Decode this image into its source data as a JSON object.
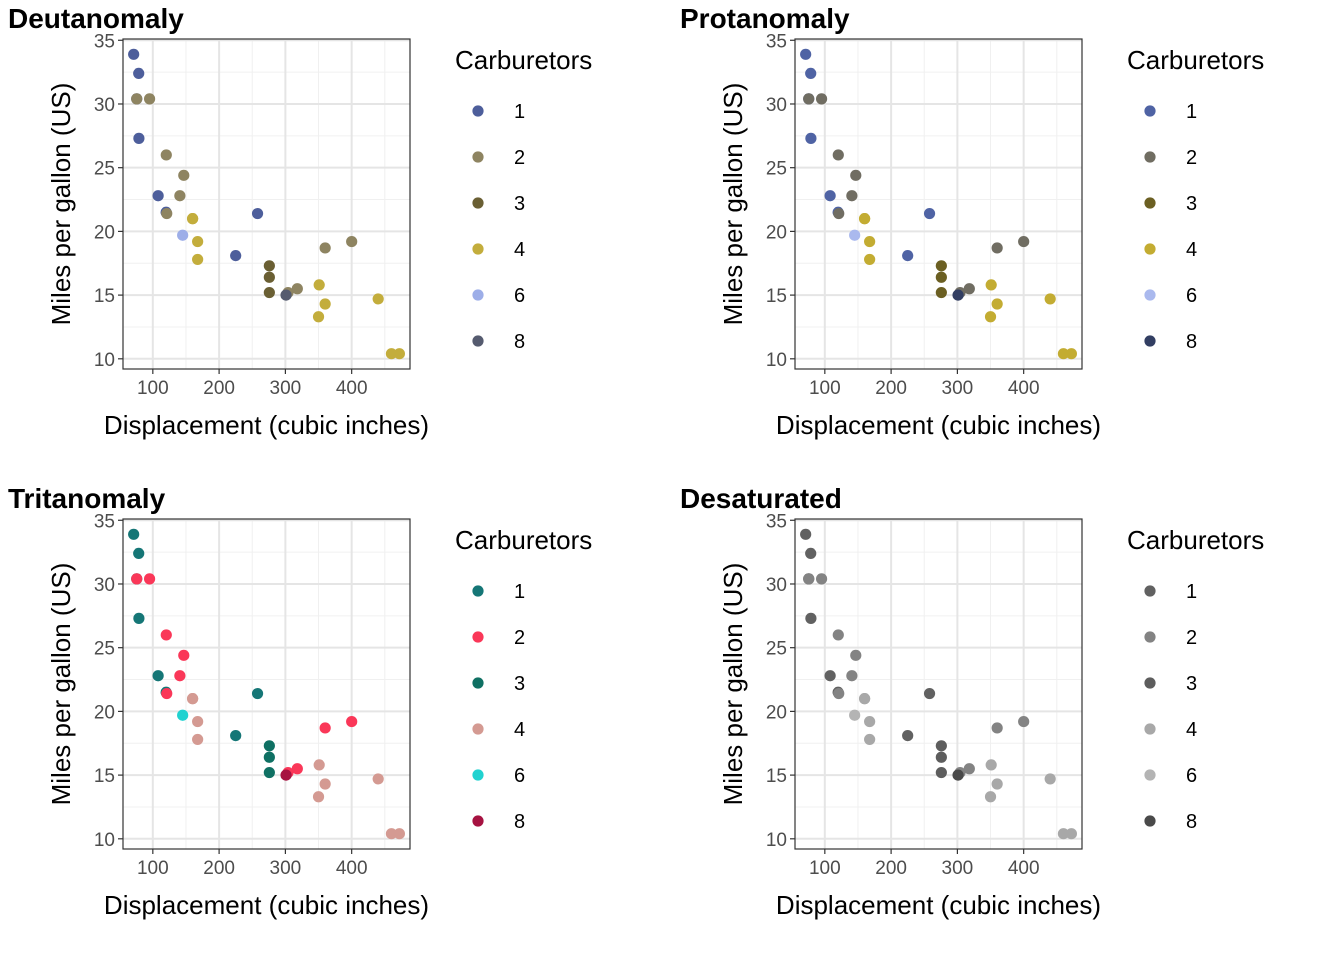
{
  "chart_data": [
    {
      "type": "scatter",
      "title": "Deutanomaly",
      "xlabel": "Displacement (cubic inches)",
      "ylabel": "Miles per gallon (US)",
      "xlim": [
        55,
        488
      ],
      "ylim": [
        9.2,
        35.1
      ],
      "xticks": [
        100,
        200,
        300,
        400
      ],
      "yticks": [
        10,
        15,
        20,
        25,
        30,
        35
      ],
      "grid": true,
      "legend": {
        "title": "Carburetors",
        "position": "right"
      },
      "series": [
        {
          "name": "1",
          "color": "#4d5e9b",
          "points": [
            [
              108,
              22.8
            ],
            [
              258,
              21.4
            ],
            [
              225,
              18.1
            ],
            [
              78.7,
              32.4
            ],
            [
              75.7,
              30.4
            ],
            [
              71.1,
              33.9
            ],
            [
              120.1,
              21.5
            ],
            [
              79,
              27.3
            ]
          ]
        },
        {
          "name": "2",
          "color": "#8e8461",
          "points": [
            [
              360,
              18.7
            ],
            [
              146.7,
              24.4
            ],
            [
              140.8,
              22.8
            ],
            [
              318,
              15.5
            ],
            [
              304,
              15.2
            ],
            [
              400,
              19.2
            ],
            [
              120.3,
              26
            ],
            [
              95.1,
              30.4
            ],
            [
              121,
              21.4
            ],
            [
              75.7,
              30.4
            ]
          ]
        },
        {
          "name": "3",
          "color": "#6a5f33",
          "points": [
            [
              275.8,
              16.4
            ],
            [
              275.8,
              17.3
            ],
            [
              275.8,
              15.2
            ]
          ]
        },
        {
          "name": "4",
          "color": "#c3ad3c",
          "points": [
            [
              160,
              21
            ],
            [
              160,
              21
            ],
            [
              360,
              14.3
            ],
            [
              167.6,
              19.2
            ],
            [
              167.6,
              17.8
            ],
            [
              472,
              10.4
            ],
            [
              460,
              10.4
            ],
            [
              440,
              14.7
            ],
            [
              350,
              13.3
            ],
            [
              351,
              15.8
            ]
          ]
        },
        {
          "name": "6",
          "color": "#9daee8",
          "points": [
            [
              145,
              19.7
            ]
          ]
        },
        {
          "name": "8",
          "color": "#555b6f",
          "points": [
            [
              301,
              15
            ]
          ]
        }
      ]
    },
    {
      "type": "scatter",
      "title": "Protanomaly",
      "xlabel": "Displacement (cubic inches)",
      "ylabel": "Miles per gallon (US)",
      "xlim": [
        55,
        488
      ],
      "ylim": [
        9.2,
        35.1
      ],
      "xticks": [
        100,
        200,
        300,
        400
      ],
      "yticks": [
        10,
        15,
        20,
        25,
        30,
        35
      ],
      "grid": true,
      "legend": {
        "title": "Carburetors",
        "position": "right"
      },
      "series": [
        {
          "name": "1",
          "color": "#4f63a4",
          "points": [
            [
              108,
              22.8
            ],
            [
              258,
              21.4
            ],
            [
              225,
              18.1
            ],
            [
              78.7,
              32.4
            ],
            [
              75.7,
              30.4
            ],
            [
              71.1,
              33.9
            ],
            [
              120.1,
              21.5
            ],
            [
              79,
              27.3
            ]
          ]
        },
        {
          "name": "2",
          "color": "#706d62",
          "points": [
            [
              360,
              18.7
            ],
            [
              146.7,
              24.4
            ],
            [
              140.8,
              22.8
            ],
            [
              318,
              15.5
            ],
            [
              304,
              15.2
            ],
            [
              400,
              19.2
            ],
            [
              120.3,
              26
            ],
            [
              95.1,
              30.4
            ],
            [
              121,
              21.4
            ],
            [
              75.7,
              30.4
            ]
          ]
        },
        {
          "name": "3",
          "color": "#6b5f22",
          "points": [
            [
              275.8,
              16.4
            ],
            [
              275.8,
              17.3
            ],
            [
              275.8,
              15.2
            ]
          ]
        },
        {
          "name": "4",
          "color": "#c3ac32",
          "points": [
            [
              160,
              21
            ],
            [
              160,
              21
            ],
            [
              360,
              14.3
            ],
            [
              167.6,
              19.2
            ],
            [
              167.6,
              17.8
            ],
            [
              472,
              10.4
            ],
            [
              460,
              10.4
            ],
            [
              440,
              14.7
            ],
            [
              350,
              13.3
            ],
            [
              351,
              15.8
            ]
          ]
        },
        {
          "name": "6",
          "color": "#aab9ee",
          "points": [
            [
              145,
              19.7
            ]
          ]
        },
        {
          "name": "8",
          "color": "#323e62",
          "points": [
            [
              301,
              15
            ]
          ]
        }
      ]
    },
    {
      "type": "scatter",
      "title": "Tritanomaly",
      "xlabel": "Displacement (cubic inches)",
      "ylabel": "Miles per gallon (US)",
      "xlim": [
        55,
        488
      ],
      "ylim": [
        9.2,
        35.1
      ],
      "xticks": [
        100,
        200,
        300,
        400
      ],
      "yticks": [
        10,
        15,
        20,
        25,
        30,
        35
      ],
      "grid": true,
      "legend": {
        "title": "Carburetors",
        "position": "right"
      },
      "series": [
        {
          "name": "1",
          "color": "#157676",
          "points": [
            [
              108,
              22.8
            ],
            [
              258,
              21.4
            ],
            [
              225,
              18.1
            ],
            [
              78.7,
              32.4
            ],
            [
              75.7,
              30.4
            ],
            [
              71.1,
              33.9
            ],
            [
              120.1,
              21.5
            ],
            [
              79,
              27.3
            ]
          ]
        },
        {
          "name": "2",
          "color": "#fa3758",
          "points": [
            [
              360,
              18.7
            ],
            [
              146.7,
              24.4
            ],
            [
              140.8,
              22.8
            ],
            [
              318,
              15.5
            ],
            [
              304,
              15.2
            ],
            [
              400,
              19.2
            ],
            [
              120.3,
              26
            ],
            [
              95.1,
              30.4
            ],
            [
              121,
              21.4
            ],
            [
              75.7,
              30.4
            ]
          ]
        },
        {
          "name": "3",
          "color": "#0f7063",
          "points": [
            [
              275.8,
              16.4
            ],
            [
              275.8,
              17.3
            ],
            [
              275.8,
              15.2
            ]
          ]
        },
        {
          "name": "4",
          "color": "#d49a92",
          "points": [
            [
              160,
              21
            ],
            [
              160,
              21
            ],
            [
              360,
              14.3
            ],
            [
              167.6,
              19.2
            ],
            [
              167.6,
              17.8
            ],
            [
              472,
              10.4
            ],
            [
              460,
              10.4
            ],
            [
              440,
              14.7
            ],
            [
              350,
              13.3
            ],
            [
              351,
              15.8
            ]
          ]
        },
        {
          "name": "6",
          "color": "#21d2d0",
          "points": [
            [
              145,
              19.7
            ]
          ]
        },
        {
          "name": "8",
          "color": "#a61241",
          "points": [
            [
              301,
              15
            ]
          ]
        }
      ]
    },
    {
      "type": "scatter",
      "title": "Desaturated",
      "xlabel": "Displacement (cubic inches)",
      "ylabel": "Miles per gallon (US)",
      "xlim": [
        55,
        488
      ],
      "ylim": [
        9.2,
        35.1
      ],
      "xticks": [
        100,
        200,
        300,
        400
      ],
      "yticks": [
        10,
        15,
        20,
        25,
        30,
        35
      ],
      "grid": true,
      "legend": {
        "title": "Carburetors",
        "position": "right"
      },
      "series": [
        {
          "name": "1",
          "color": "#616161",
          "points": [
            [
              108,
              22.8
            ],
            [
              258,
              21.4
            ],
            [
              225,
              18.1
            ],
            [
              78.7,
              32.4
            ],
            [
              75.7,
              30.4
            ],
            [
              71.1,
              33.9
            ],
            [
              120.1,
              21.5
            ],
            [
              79,
              27.3
            ]
          ]
        },
        {
          "name": "2",
          "color": "#838383",
          "points": [
            [
              360,
              18.7
            ],
            [
              146.7,
              24.4
            ],
            [
              140.8,
              22.8
            ],
            [
              318,
              15.5
            ],
            [
              304,
              15.2
            ],
            [
              400,
              19.2
            ],
            [
              120.3,
              26
            ],
            [
              95.1,
              30.4
            ],
            [
              121,
              21.4
            ],
            [
              75.7,
              30.4
            ]
          ]
        },
        {
          "name": "3",
          "color": "#5d5d5d",
          "points": [
            [
              275.8,
              16.4
            ],
            [
              275.8,
              17.3
            ],
            [
              275.8,
              15.2
            ]
          ]
        },
        {
          "name": "4",
          "color": "#a8a8a8",
          "points": [
            [
              160,
              21
            ],
            [
              160,
              21
            ],
            [
              360,
              14.3
            ],
            [
              167.6,
              19.2
            ],
            [
              167.6,
              17.8
            ],
            [
              472,
              10.4
            ],
            [
              460,
              10.4
            ],
            [
              440,
              14.7
            ],
            [
              350,
              13.3
            ],
            [
              351,
              15.8
            ]
          ]
        },
        {
          "name": "6",
          "color": "#b4b4b4",
          "points": [
            [
              145,
              19.7
            ]
          ]
        },
        {
          "name": "8",
          "color": "#4a4a4a",
          "points": [
            [
              301,
              15
            ]
          ]
        }
      ]
    }
  ]
}
